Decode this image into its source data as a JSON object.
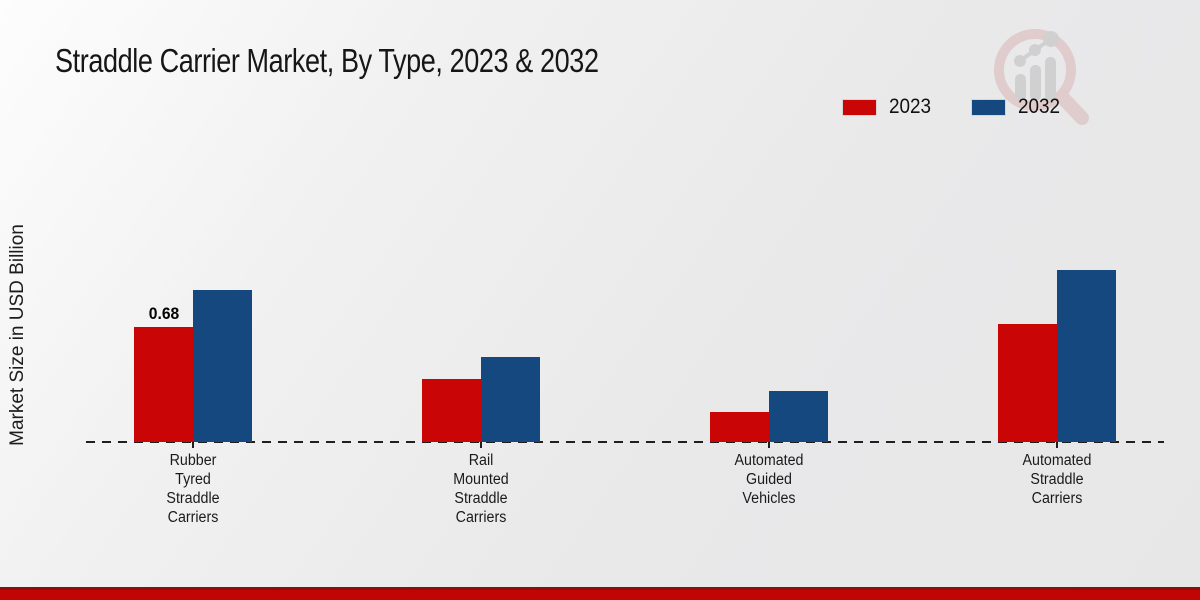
{
  "header": {
    "title": "Straddle Carrier Market, By Type, 2023 & 2032"
  },
  "y_axis": {
    "label": "Market Size in USD Billion"
  },
  "legend": {
    "position": "top-right",
    "items": [
      {
        "label": "2023",
        "color": "#c90505"
      },
      {
        "label": "2032",
        "color": "#14487e"
      }
    ]
  },
  "logo": {
    "name": "market-research-magnifier-logo",
    "ring_color": "#d9b6b6",
    "bars_color": "#bdbdbd"
  },
  "footer": {
    "color": "#c10505",
    "edge_color": "#8e0d0d"
  },
  "chart_data": {
    "type": "bar",
    "title": "Straddle Carrier Market, By Type, 2023 & 2032",
    "xlabel": "",
    "ylabel": "Market Size in USD Billion",
    "ylim": [
      0,
      1.1
    ],
    "grid": false,
    "legend_position": "top-right",
    "baseline_style": "dashed",
    "categories": [
      "Rubber Tyred Straddle Carriers",
      "Rail Mounted Straddle Carriers",
      "Automated Guided Vehicles",
      "Automated Straddle Carriers"
    ],
    "categories_wrapped": [
      "Rubber\nTyred\nStraddle\nCarriers",
      "Rail\nMounted\nStraddle\nCarriers",
      "Automated\nGuided\nVehicles",
      "Automated\nStraddle\nCarriers"
    ],
    "series": [
      {
        "name": "2023",
        "color": "#c90505",
        "values": [
          0.68,
          0.37,
          0.18,
          0.7
        ],
        "data_labels": [
          "0.68",
          "",
          "",
          ""
        ]
      },
      {
        "name": "2032",
        "color": "#14487e",
        "values": [
          0.9,
          0.5,
          0.3,
          1.02
        ],
        "data_labels": [
          "",
          "",
          "",
          ""
        ]
      }
    ]
  }
}
